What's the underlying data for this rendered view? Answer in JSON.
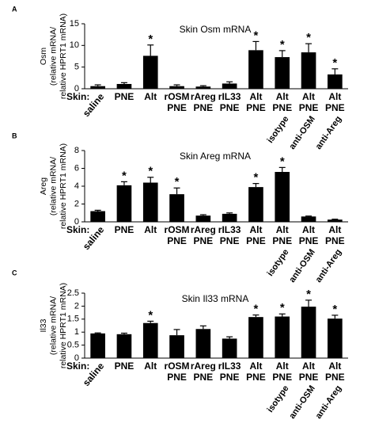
{
  "chart_data": [
    {
      "type": "bar",
      "panel_label": "A",
      "title": "Skin Osm mRNA",
      "y_label": [
        "Osm",
        "(relative mRNA/",
        "relative HPRT1 mRNA)"
      ],
      "x_prefix": "Skin:",
      "categories": [
        [
          "saline"
        ],
        [
          "PNE"
        ],
        [
          "Alt"
        ],
        [
          "rOSM",
          "PNE"
        ],
        [
          "rAreg",
          "PNE"
        ],
        [
          "rIL33",
          "PNE"
        ],
        [
          "Alt",
          "PNE"
        ],
        [
          "Alt",
          "PNE"
        ],
        [
          "Alt",
          "PNE"
        ],
        [
          "Alt",
          "PNE"
        ]
      ],
      "treatments": [
        null,
        null,
        null,
        null,
        null,
        null,
        null,
        "isotype",
        "anti-OSM",
        "anti-Areg"
      ],
      "values": [
        0.6,
        1.1,
        7.6,
        0.6,
        0.5,
        1.2,
        8.9,
        7.3,
        8.4,
        3.3
      ],
      "errors": [
        0.3,
        0.3,
        2.5,
        0.3,
        0.2,
        0.4,
        2.0,
        1.5,
        2.0,
        1.3
      ],
      "significance": [
        null,
        null,
        "*",
        null,
        null,
        null,
        "*",
        "*",
        "*",
        "*"
      ],
      "color": "#000000",
      "ylim": [
        0,
        15
      ],
      "yticks": [
        0,
        5,
        10,
        15
      ]
    },
    {
      "type": "bar",
      "panel_label": "B",
      "title": "Skin Areg mRNA",
      "y_label": [
        "Areg",
        "(relative mRNA/",
        "relative HPRT1 mRNA)"
      ],
      "x_prefix": "Skin:",
      "categories": [
        [
          "saline"
        ],
        [
          "PNE"
        ],
        [
          "Alt"
        ],
        [
          "rOSM",
          "PNE"
        ],
        [
          "rAreg",
          "PNE"
        ],
        [
          "rIL33",
          "PNE"
        ],
        [
          "Alt",
          "PNE"
        ],
        [
          "Alt",
          "PNE"
        ],
        [
          "Alt",
          "PNE"
        ],
        [
          "Alt",
          "PNE"
        ]
      ],
      "treatments": [
        null,
        null,
        null,
        null,
        null,
        null,
        null,
        "isotype",
        "anti-OSM",
        "anti-Areg"
      ],
      "values": [
        1.2,
        4.1,
        4.4,
        3.1,
        0.7,
        0.9,
        3.9,
        5.6,
        0.6,
        0.25
      ],
      "errors": [
        0.1,
        0.4,
        0.6,
        0.7,
        0.1,
        0.1,
        0.4,
        0.5,
        0.05,
        0.05
      ],
      "significance": [
        null,
        "*",
        "*",
        "*",
        null,
        null,
        "*",
        "*",
        null,
        null
      ],
      "color": "#000000",
      "ylim": [
        0,
        8
      ],
      "yticks": [
        0,
        2,
        4,
        6,
        8
      ]
    },
    {
      "type": "bar",
      "panel_label": "C",
      "title": "Skin Il33 mRNA",
      "y_label": [
        "Il33",
        "(relative mRNA/",
        "relative HPRT1 mRNA)"
      ],
      "x_prefix": "Skin:",
      "categories": [
        [
          "saline"
        ],
        [
          "PNE"
        ],
        [
          "Alt"
        ],
        [
          "rOSM",
          "PNE"
        ],
        [
          "rAreg",
          "PNE"
        ],
        [
          "rIL33",
          "PNE"
        ],
        [
          "Alt",
          "PNE"
        ],
        [
          "Alt",
          "PNE"
        ],
        [
          "Alt",
          "PNE"
        ],
        [
          "Alt",
          "PNE"
        ]
      ],
      "treatments": [
        null,
        null,
        null,
        null,
        null,
        null,
        null,
        "isotype",
        "anti-OSM",
        "anti-Areg"
      ],
      "values": [
        0.95,
        0.92,
        1.35,
        0.88,
        1.12,
        0.75,
        1.58,
        1.6,
        1.98,
        1.52
      ],
      "errors": [
        0.02,
        0.04,
        0.07,
        0.22,
        0.12,
        0.07,
        0.08,
        0.1,
        0.25,
        0.13
      ],
      "significance": [
        null,
        null,
        "*",
        null,
        null,
        null,
        "*",
        "*",
        "*",
        "*"
      ],
      "color": "#000000",
      "ylim": [
        0,
        2.5
      ],
      "yticks": [
        0,
        0.5,
        1,
        1.5,
        2,
        2.5
      ]
    }
  ]
}
